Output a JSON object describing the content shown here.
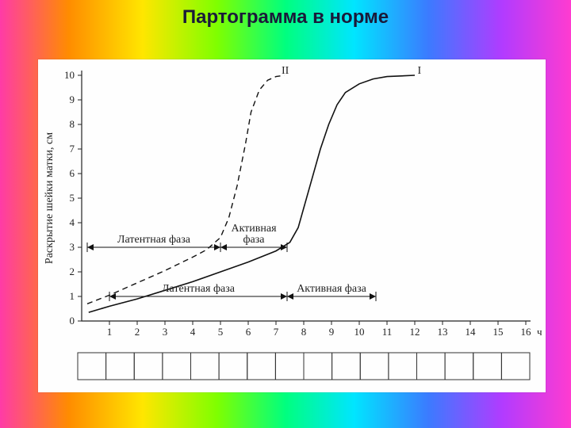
{
  "title": "Партограмма в норме",
  "background_gradient_colors": [
    "#ff3ba7",
    "#ff8c00",
    "#ffe600",
    "#7fff00",
    "#00ff7f",
    "#00e5ff",
    "#3b7bff",
    "#b23bff",
    "#ff3bd0"
  ],
  "chart": {
    "type": "line",
    "background_color": "#fefefe",
    "axis_color": "#222222",
    "xlim": [
      0,
      16
    ],
    "ylim": [
      0,
      10
    ],
    "xtick_step": 1,
    "ytick_step": 1,
    "x_tick_labels": [
      "1",
      "2",
      "3",
      "4",
      "5",
      "6",
      "7",
      "8",
      "9",
      "10",
      "11",
      "12",
      "13",
      "14",
      "15",
      "16"
    ],
    "y_tick_labels": [
      "0",
      "1",
      "2",
      "3",
      "4",
      "5",
      "6",
      "7",
      "8",
      "9",
      "10"
    ],
    "x_unit_label": "ч",
    "y_axis_label": "Раскрытие шейки матки, см",
    "label_fontsize": 14,
    "tick_fontsize": 13,
    "series": [
      {
        "name": "I",
        "label": "I",
        "style": "solid",
        "color": "#111111",
        "line_width": 1.6,
        "points": [
          [
            0.25,
            0.35
          ],
          [
            1,
            0.6
          ],
          [
            2,
            0.9
          ],
          [
            3,
            1.25
          ],
          [
            4,
            1.6
          ],
          [
            5,
            2.0
          ],
          [
            6,
            2.4
          ],
          [
            7,
            2.85
          ],
          [
            7.5,
            3.2
          ],
          [
            7.8,
            3.8
          ],
          [
            8.0,
            4.6
          ],
          [
            8.3,
            5.8
          ],
          [
            8.6,
            7.0
          ],
          [
            8.9,
            8.0
          ],
          [
            9.2,
            8.8
          ],
          [
            9.5,
            9.3
          ],
          [
            10.0,
            9.65
          ],
          [
            10.5,
            9.85
          ],
          [
            11.0,
            9.95
          ],
          [
            12.0,
            10.0
          ]
        ]
      },
      {
        "name": "II",
        "label": "II",
        "style": "dashed",
        "color": "#111111",
        "line_width": 1.4,
        "dash_pattern": "7 5",
        "points": [
          [
            0.2,
            0.7
          ],
          [
            1,
            1.05
          ],
          [
            2,
            1.55
          ],
          [
            3,
            2.05
          ],
          [
            4,
            2.6
          ],
          [
            4.5,
            2.9
          ],
          [
            5.0,
            3.4
          ],
          [
            5.3,
            4.2
          ],
          [
            5.6,
            5.5
          ],
          [
            5.9,
            7.2
          ],
          [
            6.1,
            8.5
          ],
          [
            6.4,
            9.4
          ],
          [
            6.7,
            9.8
          ],
          [
            7.0,
            9.95
          ],
          [
            7.3,
            10.0
          ]
        ]
      }
    ],
    "phase_markers": [
      {
        "label": "Латентная фаза",
        "y_cm": 3.0,
        "x_start": 0.2,
        "x_end": 5.0,
        "for_series": "II"
      },
      {
        "label": "Активная фаза",
        "y_cm": 3.0,
        "x_start": 5.0,
        "x_end": 7.4,
        "for_series": "II",
        "label_above": true
      },
      {
        "label": "Латентная фаза",
        "y_cm": 1.0,
        "x_start": 1.0,
        "x_end": 7.4,
        "for_series": "I"
      },
      {
        "label": "Активная фаза",
        "y_cm": 1.0,
        "x_start": 7.4,
        "x_end": 10.6,
        "for_series": "I"
      }
    ],
    "series_label_positions": {
      "I": {
        "x": 12.1,
        "y": 10.0
      },
      "II": {
        "x": 7.2,
        "y": 10.2
      }
    },
    "bottom_boxes": {
      "count": 16
    }
  }
}
